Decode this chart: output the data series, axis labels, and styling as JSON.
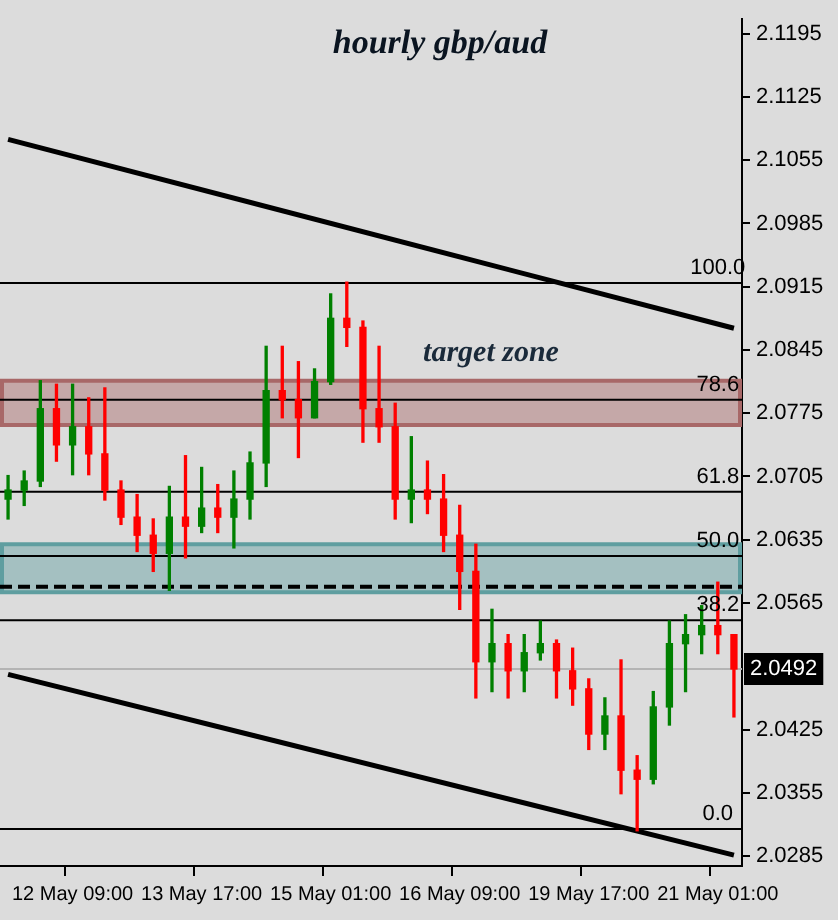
{
  "chart_data": {
    "type": "candlestick",
    "title": "hourly gbp/aud",
    "categories": [
      null,
      null,
      null,
      null,
      "12 May 09:00",
      null,
      null,
      null,
      null,
      null,
      null,
      null,
      "13 May 17:00",
      null,
      null,
      null,
      null,
      null,
      null,
      null,
      "15 May 01:00",
      null,
      null,
      null,
      null,
      null,
      null,
      null,
      "16 May 09:00",
      null,
      null,
      null,
      null,
      null,
      null,
      null,
      "19 May 17:00",
      null,
      null,
      null,
      null,
      null,
      null,
      null,
      "21 May 01:00",
      null
    ],
    "ohlc": [
      [
        2.068,
        2.0706,
        2.0658,
        2.069
      ],
      [
        2.069,
        2.0711,
        2.0673,
        2.07
      ],
      [
        2.07,
        2.0811,
        2.0694,
        2.078
      ],
      [
        2.078,
        2.0807,
        2.0722,
        2.074
      ],
      [
        2.074,
        2.0807,
        2.0707,
        2.076
      ],
      [
        2.076,
        2.0792,
        2.0707,
        2.073
      ],
      [
        2.073,
        2.0803,
        2.0679,
        2.069
      ],
      [
        2.069,
        2.07,
        2.0652,
        2.066
      ],
      [
        2.066,
        2.0685,
        2.0622,
        2.064
      ],
      [
        2.064,
        2.0658,
        2.06,
        2.062
      ],
      [
        2.062,
        2.0694,
        2.0579,
        2.066
      ],
      [
        2.066,
        2.0728,
        2.0615,
        2.065
      ],
      [
        2.065,
        2.0715,
        2.0643,
        2.067
      ],
      [
        2.067,
        2.0696,
        2.0643,
        2.066
      ],
      [
        2.066,
        2.0711,
        2.0626,
        2.068
      ],
      [
        2.068,
        2.0732,
        2.0658,
        2.072
      ],
      [
        2.072,
        2.0849,
        2.0694,
        2.08
      ],
      [
        2.08,
        2.0849,
        2.077,
        2.079
      ],
      [
        2.079,
        2.0832,
        2.0726,
        2.077
      ],
      [
        2.077,
        2.0824,
        2.077,
        2.081
      ],
      [
        2.081,
        2.0907,
        2.0807,
        2.088
      ],
      [
        2.088,
        2.092,
        2.0849,
        2.087
      ],
      [
        2.087,
        2.0877,
        2.0743,
        2.078
      ],
      [
        2.078,
        2.0849,
        2.0743,
        2.076
      ],
      [
        2.076,
        2.0786,
        2.0658,
        2.068
      ],
      [
        2.068,
        2.0749,
        2.0654,
        2.069
      ],
      [
        2.069,
        2.0722,
        2.0664,
        2.068
      ],
      [
        2.068,
        2.0707,
        2.0622,
        2.064
      ],
      [
        2.064,
        2.0673,
        2.0558,
        2.06
      ],
      [
        2.06,
        2.063,
        2.046,
        2.05
      ],
      [
        2.05,
        2.0558,
        2.0467,
        2.052
      ],
      [
        2.052,
        2.053,
        2.046,
        2.049
      ],
      [
        2.049,
        2.053,
        2.0467,
        2.051
      ],
      [
        2.051,
        2.0545,
        2.0502,
        2.052
      ],
      [
        2.052,
        2.0524,
        2.046,
        2.049
      ],
      [
        2.049,
        2.0515,
        2.0452,
        2.047
      ],
      [
        2.047,
        2.0481,
        2.0403,
        2.042
      ],
      [
        2.042,
        2.046,
        2.0403,
        2.044
      ],
      [
        2.044,
        2.0502,
        2.0354,
        2.038
      ],
      [
        2.038,
        2.0396,
        2.0313,
        2.037
      ],
      [
        2.037,
        2.0467,
        2.0365,
        2.045
      ],
      [
        2.045,
        2.0545,
        2.043,
        2.052
      ],
      [
        2.052,
        2.0552,
        2.0467,
        2.053
      ],
      [
        2.053,
        2.0562,
        2.0509,
        2.054
      ],
      [
        2.054,
        2.0588,
        2.0509,
        2.053
      ],
      [
        2.053,
        2.053,
        2.0439,
        2.0492
      ]
    ],
    "colors": [
      "#008000",
      "#008000",
      "#008000",
      "#ff0000",
      "#008000",
      "#ff0000",
      "#ff0000",
      "#ff0000",
      "#ff0000",
      "#ff0000",
      "#008000",
      "#ff0000",
      "#008000",
      "#ff0000",
      "#008000",
      "#008000",
      "#008000",
      "#ff0000",
      "#ff0000",
      "#008000",
      "#008000",
      "#ff0000",
      "#ff0000",
      "#ff0000",
      "#ff0000",
      "#008000",
      "#ff0000",
      "#ff0000",
      "#ff0000",
      "#ff0000",
      "#008000",
      "#ff0000",
      "#008000",
      "#008000",
      "#ff0000",
      "#ff0000",
      "#ff0000",
      "#008000",
      "#ff0000",
      "#ff0000",
      "#008000",
      "#008000",
      "#008000",
      "#008000",
      "#ff0000",
      "#ff0000"
    ],
    "series": [
      {
        "type": "line",
        "values": [
          2.1078,
          null,
          null,
          null,
          null,
          null,
          null,
          null,
          null,
          null,
          null,
          null,
          null,
          null,
          null,
          null,
          null,
          null,
          null,
          null,
          null,
          null,
          null,
          null,
          null,
          null,
          null,
          null,
          null,
          null,
          null,
          null,
          null,
          null,
          null,
          null,
          null,
          null,
          null,
          null,
          null,
          null,
          null,
          null,
          null,
          2.0869
        ],
        "color": "#000000"
      },
      {
        "type": "line",
        "values": [
          2.0486,
          null,
          null,
          null,
          null,
          null,
          null,
          null,
          null,
          null,
          null,
          null,
          null,
          null,
          null,
          null,
          null,
          null,
          null,
          null,
          null,
          null,
          null,
          null,
          null,
          null,
          null,
          null,
          null,
          null,
          null,
          null,
          null,
          null,
          null,
          null,
          null,
          null,
          null,
          null,
          null,
          null,
          null,
          null,
          null,
          2.0286
        ],
        "color": "#000000"
      }
    ],
    "ylim": [
      2.0274,
      2.1211
    ],
    "yticks": [
      2.1195,
      2.1125,
      2.1055,
      2.0985,
      2.0915,
      2.0845,
      2.0775,
      2.0705,
      2.0635,
      2.0565,
      2.0425,
      2.0355,
      2.0285
    ],
    "ref_lines": [
      {
        "axis": "y",
        "value": 2.0919,
        "color": "#000000"
      },
      {
        "axis": "y",
        "value": 2.079,
        "color": "#000000"
      },
      {
        "axis": "y",
        "value": 2.0688,
        "color": "#000000"
      },
      {
        "axis": "y",
        "value": 2.0617,
        "color": "#000000"
      },
      {
        "axis": "y",
        "value": 2.0546,
        "color": "#000000"
      },
      {
        "axis": "y",
        "value": 2.0315,
        "color": "#000000"
      },
      {
        "axis": "y",
        "value": 2.0583,
        "color": "#000000",
        "line_style": "dashed"
      },
      {
        "axis": "y",
        "value": 2.0492,
        "label": "2.0492",
        "color": "#b4b4b4"
      }
    ],
    "bands": [
      {
        "axis": "y",
        "from": 2.0577,
        "to": 2.063,
        "color": "#5f9ea0"
      },
      {
        "axis": "y",
        "from": 2.0762,
        "to": 2.0811,
        "label": "target zone",
        "color": "#a86868"
      }
    ],
    "annotations": [
      {
        "text": "100.0",
        "x": "21 May 01:00",
        "y": 2.0919
      },
      {
        "text": "78.6",
        "x": "21 May 01:00",
        "y": 2.079
      },
      {
        "text": "61.8",
        "x": "21 May 01:00",
        "y": 2.0688
      },
      {
        "text": "50.0",
        "x": "21 May 01:00",
        "y": 2.0617
      },
      {
        "text": "38.2",
        "x": "21 May 01:00",
        "y": 2.0546
      },
      {
        "text": "0.0",
        "x": "21 May 01:00",
        "y": 2.0315
      }
    ],
    "grid": false,
    "legend": false
  }
}
